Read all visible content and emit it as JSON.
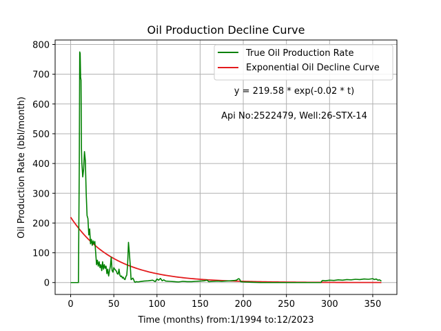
{
  "chart_data": {
    "type": "line",
    "title": "Oil Production Decline Curve",
    "xlabel": "Time (months) from:1/1994 to:12/2023",
    "ylabel": "Oil Production Rate (bbl/month)",
    "xlim": [
      -18,
      378
    ],
    "ylim": [
      -40,
      815
    ],
    "xticks": [
      0,
      50,
      100,
      150,
      200,
      250,
      300,
      350
    ],
    "yticks": [
      0,
      100,
      200,
      300,
      400,
      500,
      600,
      700,
      800
    ],
    "grid": true,
    "legend_position": "top-right",
    "annotations": [
      "y = 219.58 * exp(-0.02 * t)",
      "Api No:2522479, Well:26-STX-14"
    ],
    "colors": {
      "true_rate": "#008000",
      "fit": "#e31a1c",
      "grid": "#b0b0b0"
    },
    "series": [
      {
        "name": "True Oil Production Rate",
        "x": [
          0,
          2,
          4,
          6,
          8,
          9,
          10,
          10.5,
          11,
          11.5,
          12,
          12.5,
          13,
          14,
          15,
          16,
          17,
          18,
          19,
          20,
          21,
          22,
          23,
          24,
          25,
          26,
          27,
          28,
          29,
          30,
          31,
          32,
          33,
          34,
          35,
          36,
          37,
          38,
          39,
          40,
          41,
          42,
          43,
          44,
          45,
          46,
          47,
          48,
          49,
          50,
          51,
          52,
          53,
          54,
          55,
          56,
          57,
          58,
          59,
          60,
          61,
          62,
          63,
          64,
          65,
          66,
          67,
          68,
          69,
          70,
          71,
          72,
          73,
          74,
          75,
          76,
          78,
          80,
          85,
          90,
          95,
          98,
          100,
          102,
          104,
          106,
          108,
          110,
          115,
          120,
          125,
          130,
          135,
          140,
          145,
          150,
          155,
          158,
          160,
          165,
          170,
          175,
          180,
          185,
          190,
          192,
          194,
          195,
          196,
          197,
          200,
          210,
          220,
          230,
          240,
          250,
          260,
          270,
          280,
          290,
          291,
          292,
          295,
          300,
          305,
          310,
          315,
          320,
          325,
          330,
          335,
          340,
          345,
          350,
          352,
          354,
          356,
          358,
          360
        ],
        "y": [
          0,
          0,
          0,
          0,
          0,
          0,
          400,
          775,
          770,
          690,
          680,
          450,
          400,
          355,
          380,
          440,
          410,
          300,
          225,
          215,
          160,
          180,
          130,
          145,
          125,
          140,
          130,
          138,
          100,
          60,
          75,
          55,
          70,
          50,
          60,
          40,
          70,
          45,
          60,
          48,
          55,
          30,
          45,
          22,
          40,
          55,
          85,
          40,
          35,
          50,
          45,
          42,
          38,
          30,
          28,
          45,
          25,
          20,
          22,
          15,
          18,
          12,
          10,
          20,
          25,
          60,
          135,
          100,
          60,
          10,
          12,
          15,
          10,
          2,
          1,
          3,
          2,
          3,
          5,
          6,
          8,
          3,
          12,
          8,
          14,
          6,
          9,
          5,
          4,
          3,
          2,
          4,
          3,
          3,
          4,
          5,
          6,
          8,
          3,
          4,
          5,
          4,
          5,
          6,
          7,
          8,
          12,
          13,
          10,
          3,
          2,
          1,
          0,
          0,
          0,
          0,
          0,
          0,
          0,
          0,
          5,
          7,
          6,
          8,
          7,
          9,
          8,
          10,
          9,
          11,
          10,
          12,
          11,
          13,
          10,
          12,
          8,
          9,
          5
        ]
      },
      {
        "name": "Exponential Oil Decline Curve",
        "equation": {
          "a": 219.58,
          "b": 0.02
        },
        "x_range": [
          0,
          360
        ]
      }
    ]
  }
}
